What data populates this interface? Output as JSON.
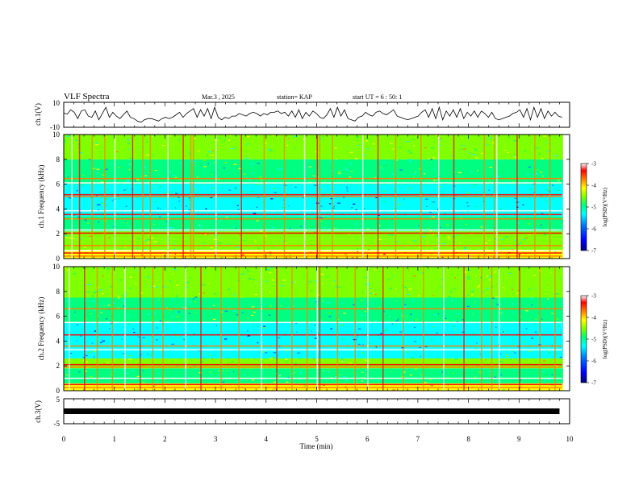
{
  "header": {
    "title": "VLF Spectra",
    "date": "Mar.3 , 2025",
    "station": "station= KAP",
    "start_ut": "start UT = 6 : 50: 1"
  },
  "colors": {
    "spectrum_palette": [
      "#00007f",
      "#0000ff",
      "#0080ff",
      "#00ffff",
      "#00ff80",
      "#80ff00",
      "#ffff00",
      "#ff8000",
      "#ff0000",
      "#ffffff"
    ],
    "trace": "#000000"
  },
  "chart_data": [
    {
      "type": "line",
      "name": "ch1-waveform",
      "ylabel": "ch.1(V)",
      "ylim": [
        -10,
        10
      ],
      "yticks": [
        "10",
        "-10"
      ],
      "xlim": [
        0,
        10
      ],
      "series": [
        {
          "values": [
            1.5,
            0.5,
            4,
            2,
            -3,
            3,
            4,
            -1,
            -2,
            3,
            -4,
            1,
            6,
            -2,
            2,
            -1,
            -3,
            0,
            3,
            -2,
            -3,
            -5,
            -6,
            -4,
            -3,
            -3,
            -4,
            -5,
            -3,
            -2,
            -3,
            -2,
            0,
            2,
            -2,
            1,
            3,
            5,
            -2,
            4,
            -1,
            5,
            -3,
            6,
            -2,
            -4,
            -2,
            -3,
            -1,
            -1,
            1,
            0,
            -1,
            1,
            2,
            1,
            -1,
            1,
            0,
            2,
            2,
            3,
            1,
            2,
            -1,
            3,
            -2,
            4,
            -3,
            2,
            -1,
            3,
            1,
            -2,
            -3,
            0,
            5,
            -2,
            6,
            -1,
            4,
            -3,
            -4,
            -5,
            -2,
            -1,
            2,
            0,
            -1,
            2,
            3,
            1,
            0,
            2,
            4,
            -1,
            -2,
            -3,
            -4,
            -3,
            -2,
            -1,
            2,
            4,
            -2,
            5,
            -3,
            6,
            -4,
            3,
            -1,
            4,
            -2,
            5,
            -3,
            2,
            -1,
            3,
            -2,
            3,
            1,
            -2,
            2,
            -3,
            -4,
            -3,
            -2,
            -1,
            1,
            2,
            4,
            -2,
            5,
            -4,
            6,
            -2,
            5,
            -3,
            3,
            -1,
            2,
            -1,
            -2
          ]
        }
      ]
    },
    {
      "type": "heatmap",
      "name": "ch1-spectrogram",
      "ylabel": "ch.1 Frequency (kHz)",
      "ylim": [
        0,
        10
      ],
      "yticks": [
        "0",
        "2",
        "4",
        "6",
        "8",
        "10"
      ],
      "xlim": [
        0,
        10
      ],
      "colorbar": {
        "label": "log(PSD)(V²/Hz)",
        "range": [
          -7,
          -3
        ],
        "ticks": [
          "-3",
          "-4",
          "-5",
          "-6",
          "-7"
        ]
      },
      "bands": [
        {
          "f": [
            0.0,
            0.7
          ],
          "v": -4.3
        },
        {
          "f": [
            0.7,
            1.6
          ],
          "v": -5.0
        },
        {
          "f": [
            1.6,
            2.2
          ],
          "v": -4.8
        },
        {
          "f": [
            2.2,
            3.4
          ],
          "v": -5.2
        },
        {
          "f": [
            3.4,
            5.0
          ],
          "v": -5.7
        },
        {
          "f": [
            5.0,
            6.0
          ],
          "v": -5.4
        },
        {
          "f": [
            6.0,
            8.0
          ],
          "v": -5.1
        },
        {
          "f": [
            8.0,
            10.0
          ],
          "v": -4.9
        }
      ],
      "lines_khz": [
        0.2,
        0.45,
        0.65,
        1.05,
        2.05,
        2.3,
        3.2,
        3.55,
        3.85,
        5.0,
        5.15,
        6.1,
        6.45
      ],
      "bursts_min": [
        0.15,
        0.3,
        0.55,
        0.8,
        1.0,
        1.35,
        1.55,
        1.7,
        2.05,
        2.35,
        2.5,
        2.55,
        3.0,
        3.5,
        3.95,
        4.35,
        4.75,
        5.0,
        5.05,
        5.3,
        5.9,
        6.2,
        6.55,
        7.05,
        7.4,
        7.7,
        8.3,
        8.5,
        8.55,
        8.95,
        9.3,
        9.6
      ]
    },
    {
      "type": "heatmap",
      "name": "ch2-spectrogram",
      "ylabel": "ch.2 Frequency (kHz)",
      "ylim": [
        0,
        10
      ],
      "yticks": [
        "0",
        "2",
        "4",
        "6",
        "8",
        "10"
      ],
      "xlim": [
        0,
        10
      ],
      "colorbar": {
        "label": "log(PSD)(V²/Hz)",
        "range": [
          -7,
          -3
        ],
        "ticks": [
          "-3",
          "-4",
          "-5",
          "-6",
          "-7"
        ]
      },
      "bands": [
        {
          "f": [
            0.0,
            0.6
          ],
          "v": -4.5
        },
        {
          "f": [
            0.6,
            1.8
          ],
          "v": -5.1
        },
        {
          "f": [
            1.8,
            2.6
          ],
          "v": -4.8
        },
        {
          "f": [
            2.6,
            3.4
          ],
          "v": -5.4
        },
        {
          "f": [
            3.4,
            5.5
          ],
          "v": -5.6
        },
        {
          "f": [
            5.5,
            7.5
          ],
          "v": -5.3
        },
        {
          "f": [
            7.5,
            10.0
          ],
          "v": -4.9
        }
      ],
      "lines_khz": [
        0.25,
        0.5,
        1.0,
        1.9,
        2.1,
        3.3,
        3.6,
        4.5,
        5.5,
        6.6
      ],
      "bursts_min": [
        0.1,
        0.4,
        0.65,
        0.95,
        1.2,
        1.5,
        1.75,
        1.95,
        2.4,
        2.7,
        3.1,
        3.45,
        3.9,
        4.2,
        4.5,
        4.8,
        5.0,
        5.05,
        5.4,
        5.75,
        6.0,
        6.3,
        6.7,
        7.1,
        7.5,
        7.9,
        8.25,
        8.45,
        8.6,
        9.0,
        9.4,
        9.7
      ]
    },
    {
      "type": "line",
      "name": "ch3-signal",
      "ylabel": "ch.3(V)",
      "ylim": [
        -5,
        5
      ],
      "yticks": [
        "5",
        "-5"
      ],
      "xlim": [
        0,
        9.8
      ],
      "series": [
        {
          "values": [
            0,
            0
          ]
        }
      ]
    }
  ],
  "x_axis": {
    "label": "Time (min)",
    "ticks": [
      "0",
      "1",
      "2",
      "3",
      "4",
      "5",
      "6",
      "7",
      "8",
      "9",
      "10"
    ]
  }
}
